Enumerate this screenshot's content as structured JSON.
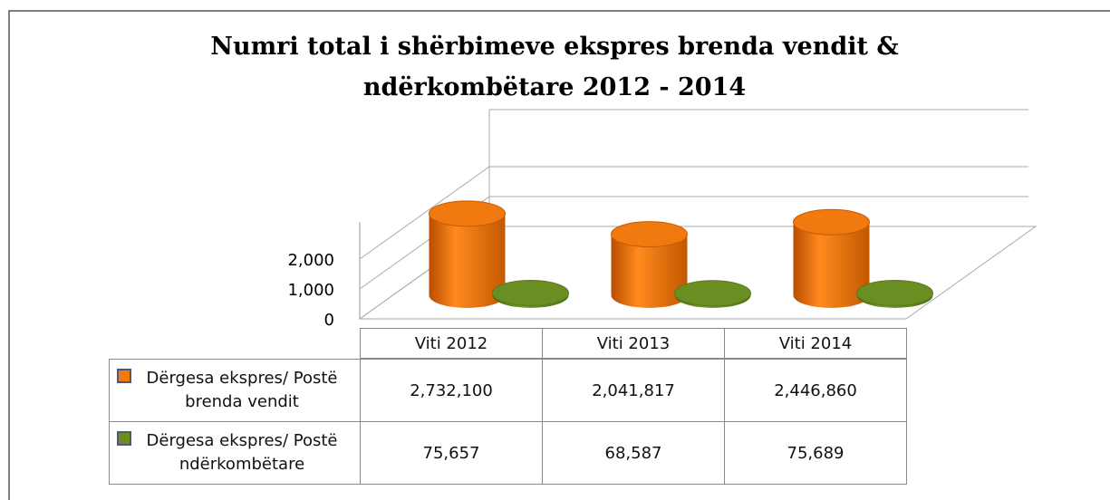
{
  "chart_data": {
    "type": "bar3d",
    "title": "Numri total i shërbimeve ekspres brenda vendit & ndërkombëtare 2012 - 2014",
    "categories": [
      "Viti 2012",
      "Viti 2013",
      "Viti 2014"
    ],
    "series": [
      {
        "name": "Dërgesa ekspres/ Postë brenda vendit",
        "color": "#f07a10",
        "values": [
          2732.1,
          2041.817,
          2446.86
        ],
        "value_labels": [
          "2,732,100",
          "2,041,817",
          "2,446,860"
        ]
      },
      {
        "name": "Dërgesa ekspres/ Postë ndërkombëtare",
        "color": "#6b8e23",
        "values": [
          75.657,
          68.587,
          75.689
        ],
        "value_labels": [
          "75,657",
          "68,587",
          "75,689"
        ]
      }
    ],
    "ylim": [
      0,
      3000
    ],
    "yticks": [
      0,
      {
        "value": 1000,
        "label": "1,000"
      },
      {
        "value": 2000,
        "label": "2,000"
      }
    ],
    "grid": true
  }
}
